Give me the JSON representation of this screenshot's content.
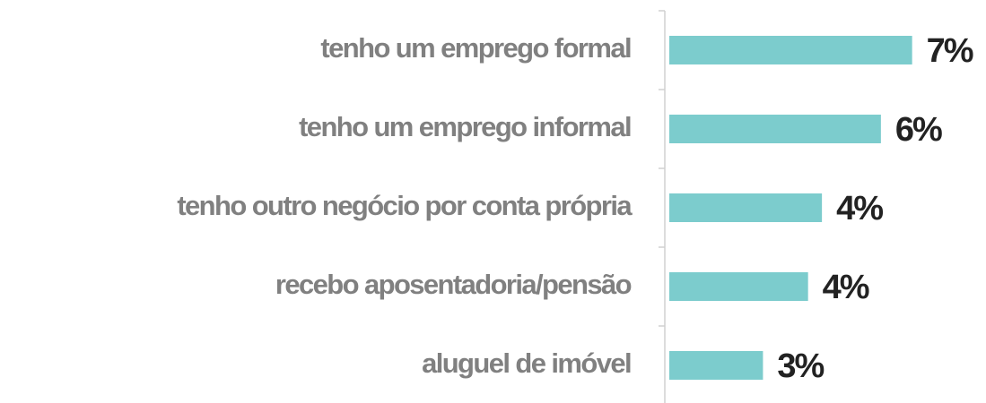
{
  "chart_data": {
    "type": "bar",
    "orientation": "horizontal",
    "categories": [
      "tenho um emprego formal",
      "tenho um emprego informal",
      "tenho outro negócio por conta própria",
      "recebo aposentadoria/pensão",
      "aluguel de imóvel"
    ],
    "values": [
      7.0,
      6.1,
      4.4,
      4.0,
      2.7
    ],
    "value_labels": [
      "7%",
      "6%",
      "4%",
      "4%",
      "3%"
    ],
    "color": "#7ccccd",
    "xlim": [
      0,
      7.5
    ]
  }
}
